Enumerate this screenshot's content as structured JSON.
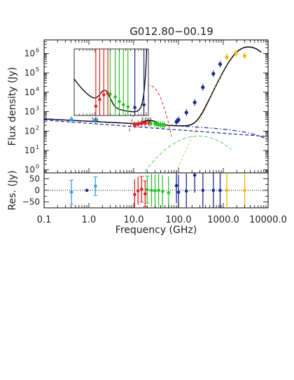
{
  "chart_data": {
    "type": "scatter",
    "title": "G012.80−00.19",
    "xlabel": "Frequency (GHz)",
    "ylabel_top": "Flux density (Jy)",
    "ylabel_bottom": "Res. (Jy)",
    "xscale": "log",
    "xlim": [
      0.1,
      10000
    ],
    "x_tick_labels": [
      "0.1",
      "1.0",
      "10.0",
      "100.0",
      "1000.0",
      "10000.0"
    ],
    "x_tick_values": [
      0.1,
      1,
      10,
      100,
      1000,
      10000
    ],
    "top_panel": {
      "yscale": "log",
      "ylim": [
        0.7,
        5000000
      ],
      "y_tick_labels": [
        "10",
        "10",
        "10",
        "10",
        "10",
        "10",
        "10"
      ],
      "y_tick_exponents": [
        "0",
        "1",
        "2",
        "3",
        "4",
        "5",
        "6"
      ],
      "y_tick_values": [
        1,
        10,
        100,
        1000,
        10000,
        100000,
        1000000
      ],
      "points": [
        {
          "x": 0.408,
          "y": 400,
          "color": "#3b9be0"
        },
        {
          "x": 1.4,
          "y": 370,
          "color": "#3b9be0"
        },
        {
          "x": 10.5,
          "y": 210,
          "color": "#e02020"
        },
        {
          "x": 12.5,
          "y": 230,
          "color": "#e02020"
        },
        {
          "x": 15.0,
          "y": 250,
          "color": "#e02020"
        },
        {
          "x": 18.0,
          "y": 255,
          "color": "#e02020"
        },
        {
          "x": 22.0,
          "y": 260,
          "color": "#e02020"
        },
        {
          "x": 24.0,
          "y": 250,
          "color": "#2ec02e"
        },
        {
          "x": 30.0,
          "y": 240,
          "color": "#2ec02e"
        },
        {
          "x": 33.0,
          "y": 230,
          "color": "#2ec02e"
        },
        {
          "x": 36.0,
          "y": 220,
          "color": "#2ec02e"
        },
        {
          "x": 40.0,
          "y": 215,
          "color": "#2ec02e"
        },
        {
          "x": 44.0,
          "y": 210,
          "color": "#2ec02e"
        },
        {
          "x": 48.0,
          "y": 205,
          "color": "#2ec02e"
        },
        {
          "x": 90.0,
          "y": 300,
          "color": "#1a2a8c"
        },
        {
          "x": 100.0,
          "y": 380,
          "color": "#1a2a8c"
        },
        {
          "x": 150.0,
          "y": 900,
          "color": "#1a2a8c"
        },
        {
          "x": 230.0,
          "y": 3000,
          "color": "#1a2a8c"
        },
        {
          "x": 350.0,
          "y": 18000,
          "color": "#1a2a8c"
        },
        {
          "x": 600.0,
          "y": 90000,
          "color": "#1a2a8c"
        },
        {
          "x": 850.0,
          "y": 280000,
          "color": "#1a2a8c"
        },
        {
          "x": 1200.0,
          "y": 650000,
          "color": "#f5b800"
        },
        {
          "x": 1900.0,
          "y": 1050000,
          "color": "#f5b800"
        },
        {
          "x": 3000.0,
          "y": 750000,
          "color": "#f5b800"
        }
      ]
    },
    "bottom_panel": {
      "ylim": [
        -75,
        75
      ],
      "y_tick_labels": [
        "50",
        "0",
        "−50"
      ],
      "y_tick_values": [
        50,
        0,
        -50
      ],
      "points": [
        {
          "x": 0.408,
          "y": -8,
          "err": 52,
          "color": "#3b9be0"
        },
        {
          "x": 0.9,
          "y": 0,
          "err": 0,
          "color": "#1a2a8c"
        },
        {
          "x": 1.4,
          "y": 18,
          "err": 40,
          "color": "#3b9be0"
        },
        {
          "x": 10.5,
          "y": -18,
          "err": 65,
          "color": "#e02020"
        },
        {
          "x": 12.5,
          "y": -2,
          "err": 60,
          "color": "#e02020"
        },
        {
          "x": 15.0,
          "y": 5,
          "err": 55,
          "color": "#e02020"
        },
        {
          "x": 18.0,
          "y": -15,
          "err": 55,
          "color": "#e02020"
        },
        {
          "x": 20.0,
          "y": 3,
          "err": 58,
          "color": "#2ec02e"
        },
        {
          "x": 25.0,
          "y": 0,
          "err": 70,
          "color": "#2ec02e"
        },
        {
          "x": 30.0,
          "y": -2,
          "err": 70,
          "color": "#2ec02e"
        },
        {
          "x": 36.0,
          "y": 0,
          "err": 70,
          "color": "#2ec02e"
        },
        {
          "x": 44.0,
          "y": -5,
          "err": 70,
          "color": "#2ec02e"
        },
        {
          "x": 60.0,
          "y": -10,
          "err": 70,
          "color": "#2ec02e"
        },
        {
          "x": 90.0,
          "y": 20,
          "err": 75,
          "color": "#1a2a8c"
        },
        {
          "x": 100.0,
          "y": -8,
          "err": 75,
          "color": "#1a2a8c"
        },
        {
          "x": 150.0,
          "y": -3,
          "err": 75,
          "color": "#1a2a8c"
        },
        {
          "x": 230.0,
          "y": 65,
          "err": 75,
          "color": "#1a2a8c"
        },
        {
          "x": 350.0,
          "y": 0,
          "err": 75,
          "color": "#1a2a8c"
        },
        {
          "x": 600.0,
          "y": 0,
          "err": 75,
          "color": "#1a2a8c"
        },
        {
          "x": 850.0,
          "y": 0,
          "err": 75,
          "color": "#1a2a8c"
        },
        {
          "x": 1200.0,
          "y": 0,
          "err": 75,
          "color": "#f5b800"
        },
        {
          "x": 3000.0,
          "y": 0,
          "err": 75,
          "color": "#f5b800"
        }
      ]
    },
    "inset": {
      "xscale": "log",
      "x_tick_labels": [
        "10",
        "100"
      ],
      "x_tick_values": [
        10,
        100
      ],
      "xlim": [
        4,
        110
      ],
      "ylim": [
        0,
        1
      ],
      "points": [
        {
          "x": 10.5,
          "y": 0.14,
          "color": "#e02020"
        },
        {
          "x": 12.5,
          "y": 0.24,
          "color": "#e02020"
        },
        {
          "x": 15.0,
          "y": 0.31,
          "color": "#e02020"
        },
        {
          "x": 18.0,
          "y": 0.33,
          "color": "#e02020"
        },
        {
          "x": 20.0,
          "y": 0.32,
          "color": "#2ec02e"
        },
        {
          "x": 25.0,
          "y": 0.28,
          "color": "#2ec02e"
        },
        {
          "x": 30.0,
          "y": 0.21,
          "color": "#2ec02e"
        },
        {
          "x": 36.0,
          "y": 0.16,
          "color": "#2ec02e"
        },
        {
          "x": 44.0,
          "y": 0.13,
          "color": "#2ec02e"
        },
        {
          "x": 60.0,
          "y": 0.12,
          "color": "#1a2a8c"
        },
        {
          "x": 90.0,
          "y": 0.16,
          "color": "#1a2a8c"
        }
      ]
    },
    "colors": {
      "total_model": "#000000",
      "free_free": "#1a2a8c",
      "spinning_dust": "#e02020",
      "cmb_dust": "#2ec02e",
      "thermal_dust": "#e8a060",
      "zero_line": "#000000"
    }
  }
}
